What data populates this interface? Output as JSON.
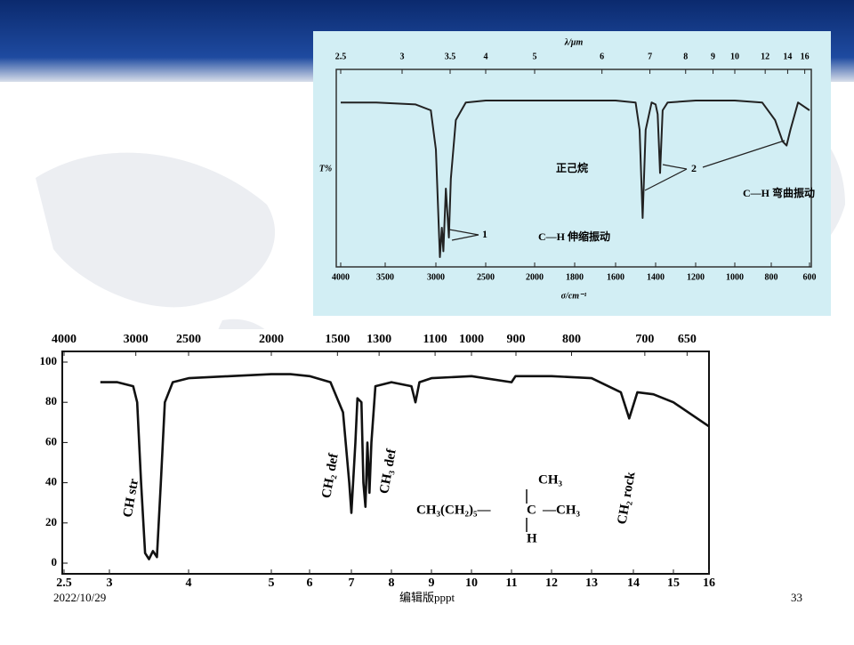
{
  "chart_data": [
    {
      "type": "line",
      "xlabel": "σ/cm⁻¹",
      "x2label": "λ/μm",
      "ylabel": "T%",
      "x": [
        4000,
        3600,
        3200,
        3050,
        3000,
        2960,
        2940,
        2925,
        2900,
        2870,
        2850,
        2800,
        2700,
        2500,
        2000,
        1600,
        1500,
        1480,
        1465,
        1450,
        1420,
        1400,
        1390,
        1378,
        1365,
        1340,
        1200,
        1000,
        850,
        780,
        740,
        720,
        700,
        660,
        600
      ],
      "values": [
        84,
        84,
        83,
        80,
        60,
        5,
        20,
        8,
        40,
        15,
        45,
        75,
        84,
        85,
        85,
        85,
        84,
        70,
        25,
        70,
        84,
        83,
        78,
        48,
        80,
        84,
        85,
        85,
        84,
        75,
        64,
        62,
        70,
        84,
        80
      ],
      "color": "#222222",
      "ylim": [
        0,
        100
      ],
      "xticks": [
        4000,
        3500,
        3000,
        2500,
        2000,
        1800,
        1600,
        1400,
        1200,
        1000,
        800,
        600
      ],
      "x2ticks": [
        2.5,
        3,
        3.5,
        4,
        5,
        6,
        7,
        8,
        9,
        10,
        12,
        14,
        16
      ],
      "annotations": [
        "正己烷",
        "1",
        "C—H 伸缩振动",
        "2",
        "C—H 弯曲振动"
      ]
    },
    {
      "type": "line",
      "x": [
        2.9,
        3.1,
        3.3,
        3.35,
        3.4,
        3.45,
        3.5,
        3.55,
        3.6,
        3.65,
        3.7,
        3.8,
        4,
        4.5,
        5,
        5.5,
        6,
        6.5,
        6.8,
        6.95,
        7.0,
        7.1,
        7.15,
        7.25,
        7.3,
        7.35,
        7.4,
        7.45,
        7.5,
        7.6,
        8,
        8.5,
        8.6,
        8.7,
        9,
        10,
        11,
        11.1,
        12,
        13,
        13.7,
        13.9,
        14.1,
        14.5,
        15,
        16
      ],
      "values": [
        90,
        90,
        88,
        80,
        40,
        5,
        2,
        6,
        3,
        40,
        80,
        90,
        92,
        93,
        94,
        94,
        93,
        90,
        75,
        40,
        25,
        60,
        82,
        80,
        40,
        28,
        60,
        35,
        60,
        88,
        90,
        88,
        80,
        90,
        92,
        93,
        90,
        93,
        93,
        92,
        85,
        72,
        85,
        84,
        80,
        68
      ],
      "color": "#111111",
      "ylim": [
        0,
        100
      ],
      "yticks": [
        0,
        20,
        40,
        60,
        80,
        100
      ],
      "xticks": [
        2.5,
        3,
        4,
        5,
        6,
        7,
        8,
        9,
        10,
        11,
        12,
        13,
        14,
        15,
        16
      ],
      "x2ticks": [
        4000,
        3000,
        2500,
        2000,
        1500,
        1300,
        1100,
        1000,
        900,
        800,
        700,
        650
      ],
      "annotations": [
        "CH str",
        "CH₂ def",
        "CH₃ def",
        "CH₂ rock",
        "CH₃",
        "CH₃(CH₂)₅—",
        "C",
        "—CH₃",
        "H"
      ]
    }
  ],
  "footer": {
    "date": "2022/10/29",
    "center": "编辑版pppt",
    "page": "33"
  }
}
